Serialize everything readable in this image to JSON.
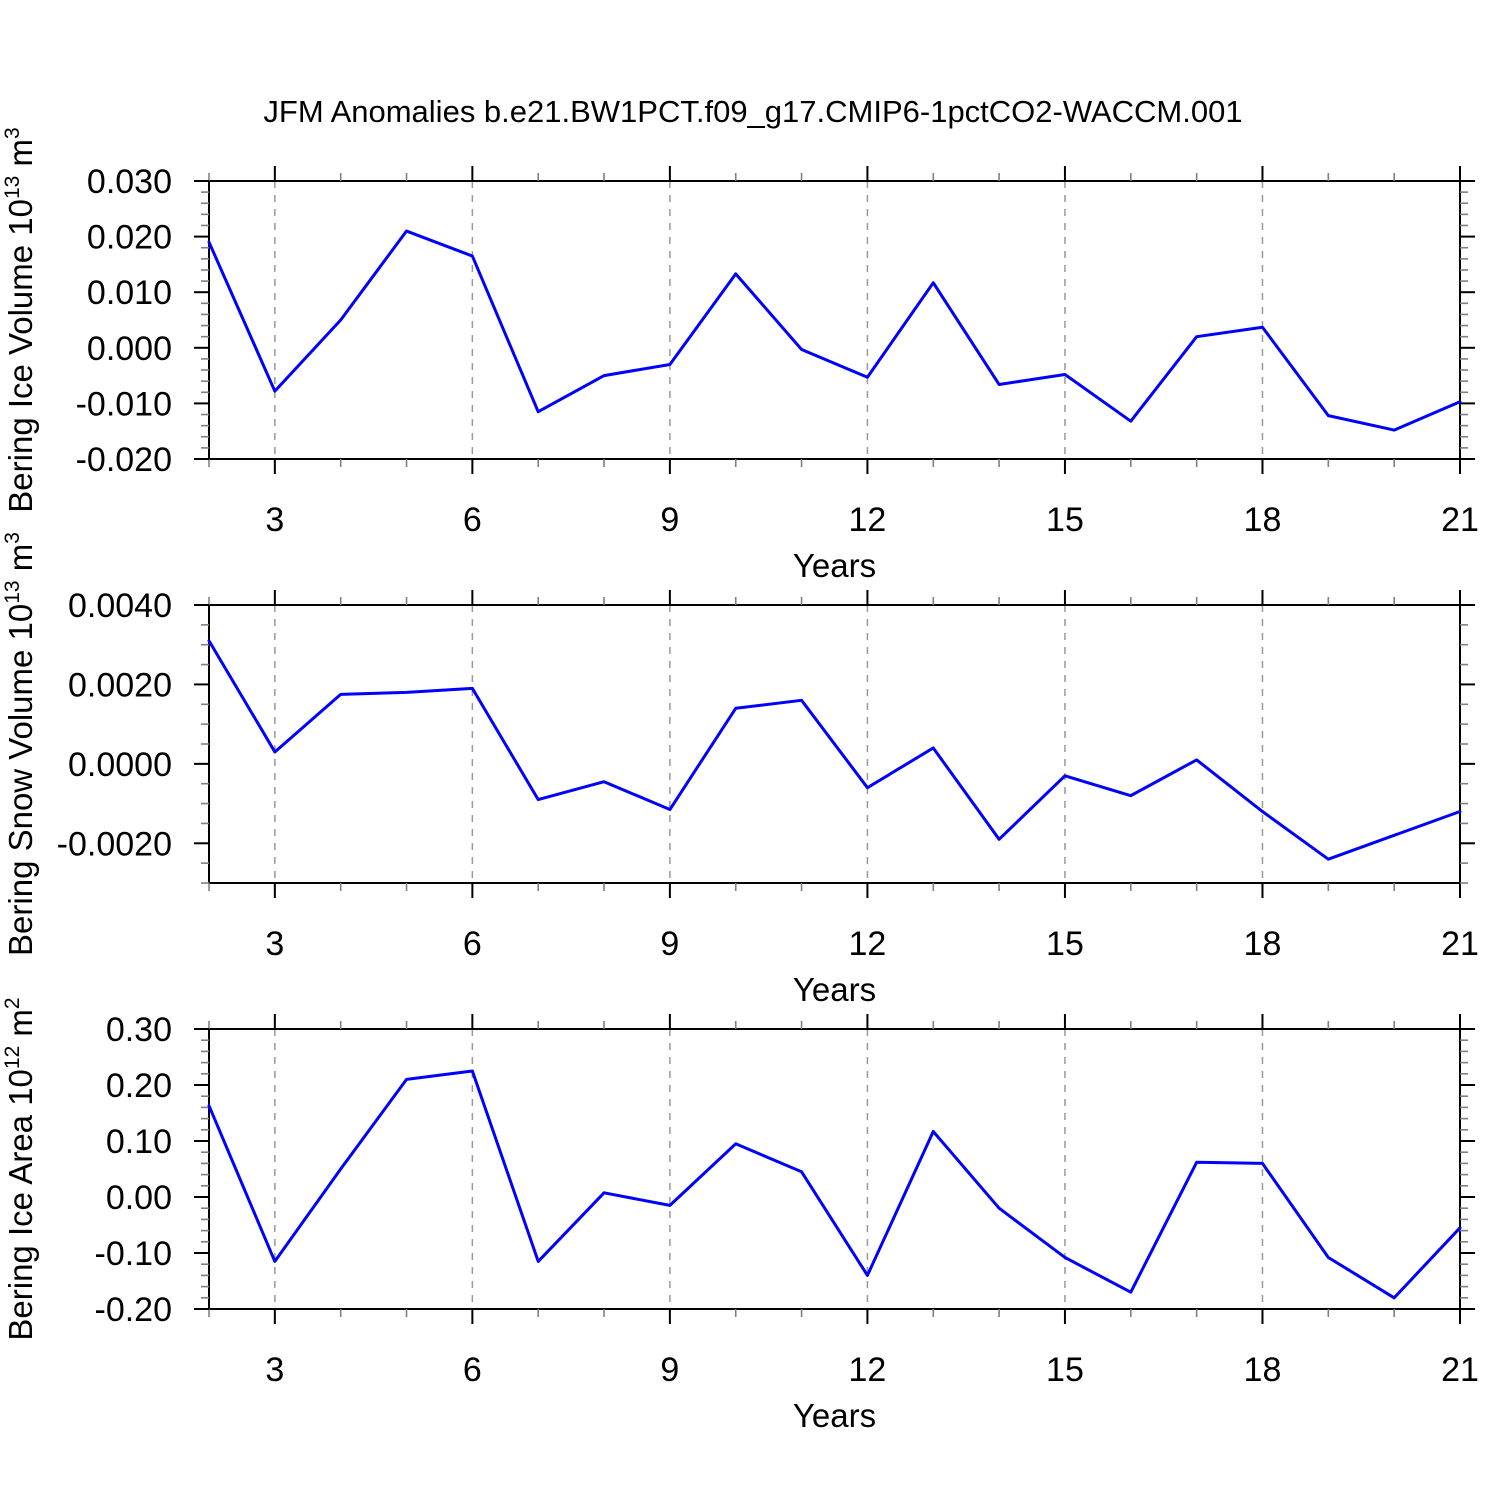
{
  "title": "JFM Anomalies b.e21.BW1PCT.f09_g17.CMIP6-1pctCO2-WACCM.001",
  "line_color": "#0000FF",
  "grid_color": "#999999",
  "axis_color": "#000000",
  "minor_tick_color": "#808080",
  "chart_data": [
    {
      "type": "line",
      "id": "bering-ice-volume",
      "ylabel_parts": [
        "Bering Ice Volume 10",
        "^13",
        " m",
        "^3"
      ],
      "xlabel": "Years",
      "x": [
        2,
        3,
        4,
        5,
        6,
        7,
        8,
        9,
        10,
        11,
        12,
        13,
        14,
        15,
        16,
        17,
        18,
        19,
        20,
        21
      ],
      "values": [
        0.019,
        -0.0078,
        0.005,
        0.021,
        0.0165,
        -0.0115,
        -0.005,
        -0.003,
        0.0133,
        -0.0003,
        -0.0053,
        0.0117,
        -0.0066,
        -0.0048,
        -0.0132,
        0.002,
        0.0037,
        -0.0122,
        -0.0148,
        -0.0097
      ],
      "xlim": [
        2,
        21
      ],
      "ylim": [
        -0.02,
        0.03
      ],
      "xticks": [
        {
          "v": 3,
          "label": "3"
        },
        {
          "v": 6,
          "label": "6"
        },
        {
          "v": 9,
          "label": "9"
        },
        {
          "v": 12,
          "label": "12"
        },
        {
          "v": 15,
          "label": "15"
        },
        {
          "v": 18,
          "label": "18"
        },
        {
          "v": 21,
          "label": "21"
        }
      ],
      "x_minor_step": 1,
      "yticks": [
        {
          "v": 0.03,
          "label": "0.030"
        },
        {
          "v": 0.02,
          "label": "0.020"
        },
        {
          "v": 0.01,
          "label": "0.010"
        },
        {
          "v": 0.0,
          "label": "0.000"
        },
        {
          "v": -0.01,
          "label": "-0.010"
        },
        {
          "v": -0.02,
          "label": "-0.020"
        }
      ],
      "y_minor_step": 0.002,
      "grid": "x-dashed-at-major-ticks",
      "legend": "none"
    },
    {
      "type": "line",
      "id": "bering-snow-volume",
      "ylabel_parts": [
        "Bering Snow Volume 10",
        "^13",
        " m",
        "^3"
      ],
      "xlabel": "Years",
      "x": [
        2,
        3,
        4,
        5,
        6,
        7,
        8,
        9,
        10,
        11,
        12,
        13,
        14,
        15,
        16,
        17,
        18,
        19,
        20,
        21
      ],
      "values": [
        0.0031,
        0.0003,
        0.00175,
        0.0018,
        0.0019,
        -0.0009,
        -0.00045,
        -0.00115,
        0.0014,
        0.0016,
        -0.0006,
        0.0004,
        -0.0019,
        -0.0003,
        -0.0008,
        0.0001,
        -0.0012,
        -0.0024,
        -0.0018,
        -0.0012
      ],
      "xlim": [
        2,
        21
      ],
      "ylim": [
        -0.003,
        0.004
      ],
      "xticks": [
        {
          "v": 3,
          "label": "3"
        },
        {
          "v": 6,
          "label": "6"
        },
        {
          "v": 9,
          "label": "9"
        },
        {
          "v": 12,
          "label": "12"
        },
        {
          "v": 15,
          "label": "15"
        },
        {
          "v": 18,
          "label": "18"
        },
        {
          "v": 21,
          "label": "21"
        }
      ],
      "x_minor_step": 1,
      "yticks": [
        {
          "v": 0.004,
          "label": "0.0040"
        },
        {
          "v": 0.002,
          "label": "0.0020"
        },
        {
          "v": 0.0,
          "label": "0.0000"
        },
        {
          "v": -0.002,
          "label": "-0.0020"
        }
      ],
      "y_minor_step": 0.0005,
      "grid": "x-dashed-at-major-ticks",
      "legend": "none"
    },
    {
      "type": "line",
      "id": "bering-ice-area",
      "ylabel_parts": [
        "Bering Ice Area 10",
        "^12",
        " m",
        "^2"
      ],
      "xlabel": "Years",
      "x": [
        2,
        3,
        4,
        5,
        6,
        7,
        8,
        9,
        10,
        11,
        12,
        13,
        14,
        15,
        16,
        17,
        18,
        19,
        20,
        21
      ],
      "values": [
        0.163,
        -0.115,
        0.05,
        0.21,
        0.225,
        -0.115,
        0.0075,
        -0.015,
        0.095,
        0.045,
        -0.14,
        0.117,
        -0.02,
        -0.108,
        -0.17,
        0.062,
        0.06,
        -0.108,
        -0.18,
        -0.055
      ],
      "xlim": [
        2,
        21
      ],
      "ylim": [
        -0.2,
        0.3
      ],
      "xticks": [
        {
          "v": 3,
          "label": "3"
        },
        {
          "v": 6,
          "label": "6"
        },
        {
          "v": 9,
          "label": "9"
        },
        {
          "v": 12,
          "label": "12"
        },
        {
          "v": 15,
          "label": "15"
        },
        {
          "v": 18,
          "label": "18"
        },
        {
          "v": 21,
          "label": "21"
        }
      ],
      "x_minor_step": 1,
      "yticks": [
        {
          "v": 0.3,
          "label": "0.30"
        },
        {
          "v": 0.2,
          "label": "0.20"
        },
        {
          "v": 0.1,
          "label": "0.10"
        },
        {
          "v": 0.0,
          "label": "0.00"
        },
        {
          "v": -0.1,
          "label": "-0.10"
        },
        {
          "v": -0.2,
          "label": "-0.20"
        }
      ],
      "y_minor_step": 0.02,
      "grid": "x-dashed-at-major-ticks",
      "legend": "none"
    }
  ]
}
